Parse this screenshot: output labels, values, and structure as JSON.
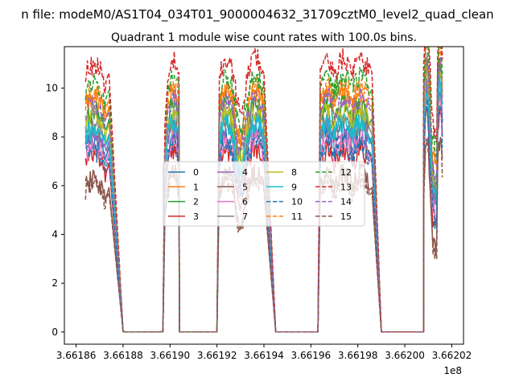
{
  "figure": {
    "suptitle": "n file: modeM0/AS1T04_034T01_9000004632_31709cztM0_level2_quad_clean",
    "title": "Quadrant 1 module wise count rates with 100.0s bins.",
    "x_offset_label": "1e8"
  },
  "chart_data": {
    "type": "line",
    "title": "Quadrant 1 module wise count rates with 100.0s bins.",
    "xlabel": "",
    "ylabel": "",
    "x_unit_note": "x values in units of 1e8",
    "xlim": [
      3.661855,
      3.662025
    ],
    "ylim": [
      -0.5,
      11.7
    ],
    "x_ticks": [
      "3.66186",
      "3.66188",
      "3.66190",
      "3.66192",
      "3.66194",
      "3.66196",
      "3.66198",
      "3.66200",
      "3.66202"
    ],
    "y_ticks": [
      "0",
      "2",
      "4",
      "6",
      "8",
      "10"
    ],
    "grid": false,
    "legend": {
      "placement": "center",
      "columns": 4
    },
    "bin_seconds": 100,
    "segments": [
      [
        3.661864,
        3.661873
      ],
      [
        3.661874,
        3.66188
      ],
      [
        3.661881,
        3.661896
      ],
      [
        3.661897,
        3.661898
      ],
      [
        3.661899,
        3.661904
      ],
      [
        3.661904,
        3.66192
      ],
      [
        3.661921,
        3.661927
      ],
      [
        3.661927,
        3.661933
      ],
      [
        3.661933,
        3.66194
      ],
      [
        3.66194,
        3.661945
      ],
      [
        3.661945,
        3.661963
      ],
      [
        3.661964,
        3.66197
      ],
      [
        3.66197,
        3.661978
      ],
      [
        3.661978,
        3.661985
      ],
      [
        3.661986,
        3.66199
      ],
      [
        3.66199,
        3.662008
      ],
      [
        3.662008,
        3.662016
      ]
    ],
    "segment_types": [
      "on",
      "drop",
      "zero",
      "rise",
      "on",
      "zero",
      "on",
      "dip",
      "on",
      "drop",
      "zero",
      "on",
      "on",
      "on",
      "drop",
      "zero",
      "on2"
    ],
    "series": [
      {
        "name": "0",
        "color": "#1f77b4",
        "dash": "solid",
        "level": 7.6
      },
      {
        "name": "1",
        "color": "#ff7f0e",
        "dash": "solid",
        "level": 9.2
      },
      {
        "name": "2",
        "color": "#2ca02c",
        "dash": "solid",
        "level": 8.7
      },
      {
        "name": "3",
        "color": "#d62728",
        "dash": "solid",
        "level": 6.9
      },
      {
        "name": "4",
        "color": "#9467bd",
        "dash": "solid",
        "level": 7.8
      },
      {
        "name": "5",
        "color": "#8c564b",
        "dash": "solid",
        "level": 5.9
      },
      {
        "name": "6",
        "color": "#e377c2",
        "dash": "solid",
        "level": 7.3
      },
      {
        "name": "7",
        "color": "#7f7f7f",
        "dash": "solid",
        "level": 8.1
      },
      {
        "name": "8",
        "color": "#bcbd22",
        "dash": "solid",
        "level": 8.5
      },
      {
        "name": "9",
        "color": "#17becf",
        "dash": "solid",
        "level": 8.0
      },
      {
        "name": "10",
        "color": "#1f77b4",
        "dash": "dashed",
        "level": 7.1
      },
      {
        "name": "11",
        "color": "#ff7f0e",
        "dash": "dashed",
        "level": 9.5
      },
      {
        "name": "12",
        "color": "#2ca02c",
        "dash": "dashed",
        "level": 9.9
      },
      {
        "name": "13",
        "color": "#d62728",
        "dash": "dashed",
        "level": 10.6
      },
      {
        "name": "14",
        "color": "#9467bd",
        "dash": "dashed",
        "level": 9.0
      },
      {
        "name": "15",
        "color": "#8c564b",
        "dash": "dashed",
        "level": 5.7
      }
    ]
  }
}
